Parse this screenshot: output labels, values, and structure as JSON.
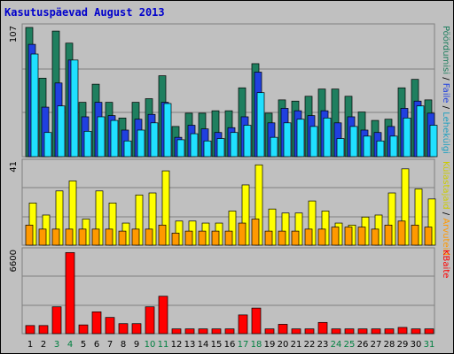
{
  "title": "Kasutuspäevad August 2013",
  "colors": {
    "visits": "#1f7f5f",
    "pages": "#2040e0",
    "files": "#20e0ff",
    "hits": "#ffff00",
    "hosts": "#ff9900",
    "kbytes": "#ff0000",
    "weekend_label": "#008040",
    "weekday_label": "#000000",
    "axis_label": "#000000"
  },
  "chart_data": [
    {
      "type": "bar",
      "panel": "top",
      "ymax_label": "107",
      "ylim": [
        0,
        107
      ],
      "right_labels": [
        {
          "text": "Pöördumisi",
          "color": "#1f7f5f"
        },
        {
          "text": " / ",
          "color": "#000000"
        },
        {
          "text": "Faile",
          "color": "#2040e0"
        },
        {
          "text": " / ",
          "color": "#000000"
        },
        {
          "text": "Lehekülgi",
          "color": "#20a0c0"
        }
      ],
      "categories": [
        "1",
        "2",
        "3",
        "4",
        "5",
        "6",
        "7",
        "8",
        "9",
        "10",
        "11",
        "12",
        "13",
        "14",
        "15",
        "16",
        "17",
        "18",
        "19",
        "20",
        "21",
        "22",
        "23",
        "24",
        "25",
        "26",
        "27",
        "28",
        "29",
        "30",
        "31"
      ],
      "series": [
        {
          "name": "Pöördumisi",
          "values": [
            107,
            65,
            104,
            94,
            45,
            60,
            45,
            32,
            45,
            48,
            67,
            25,
            36,
            36,
            38,
            38,
            57,
            77,
            36,
            47,
            46,
            50,
            56,
            56,
            50,
            37,
            30,
            31,
            57,
            64,
            47
          ]
        },
        {
          "name": "Faile",
          "values": [
            93,
            41,
            61,
            80,
            33,
            45,
            34,
            22,
            31,
            35,
            45,
            16,
            26,
            23,
            20,
            24,
            33,
            70,
            28,
            40,
            38,
            34,
            38,
            28,
            33,
            22,
            20,
            25,
            40,
            46,
            36
          ]
        },
        {
          "name": "Lehekülgi",
          "values": [
            85,
            20,
            42,
            80,
            21,
            33,
            30,
            13,
            22,
            28,
            44,
            14,
            19,
            13,
            15,
            20,
            26,
            53,
            16,
            28,
            31,
            25,
            32,
            15,
            25,
            17,
            13,
            17,
            32,
            42,
            26
          ]
        }
      ]
    },
    {
      "type": "bar",
      "panel": "middle",
      "ymax_label": "41",
      "ylim": [
        0,
        41
      ],
      "right_labels": [
        {
          "text": "Külastajaid",
          "color": "#cccc00"
        },
        {
          "text": " / ",
          "color": "#000000"
        },
        {
          "text": "Arvuteid",
          "color": "#ff9900"
        }
      ],
      "categories": [
        "1",
        "2",
        "3",
        "4",
        "5",
        "6",
        "7",
        "8",
        "9",
        "10",
        "11",
        "12",
        "13",
        "14",
        "15",
        "16",
        "17",
        "18",
        "19",
        "20",
        "21",
        "22",
        "23",
        "24",
        "25",
        "26",
        "27",
        "28",
        "29",
        "30",
        "31"
      ],
      "series": [
        {
          "name": "Külastajaid",
          "values": [
            21,
            15,
            27,
            32,
            13,
            27,
            21,
            11,
            25,
            26,
            37,
            12,
            12,
            11,
            11,
            17,
            30,
            40,
            18,
            16,
            16,
            22,
            17,
            11,
            10,
            14,
            15,
            26,
            38,
            28,
            23
          ]
        },
        {
          "name": "Arvuteid",
          "values": [
            10,
            8,
            8,
            8,
            8,
            8,
            8,
            7,
            8,
            8,
            10,
            6,
            7,
            7,
            7,
            7,
            11,
            13,
            7,
            7,
            7,
            8,
            8,
            9,
            9,
            9,
            8,
            10,
            12,
            10,
            9
          ]
        }
      ]
    },
    {
      "type": "bar",
      "panel": "bottom",
      "ymax_label": "6600",
      "ylim": [
        0,
        6600
      ],
      "right_labels": [
        {
          "text": "KBaite",
          "color": "#ff0000"
        }
      ],
      "categories": [
        "1",
        "2",
        "3",
        "4",
        "5",
        "6",
        "7",
        "8",
        "9",
        "10",
        "11",
        "12",
        "13",
        "14",
        "15",
        "16",
        "17",
        "18",
        "19",
        "20",
        "21",
        "22",
        "23",
        "24",
        "25",
        "26",
        "27",
        "28",
        "29",
        "30",
        "31"
      ],
      "weekend_days": [
        "3",
        "4",
        "10",
        "11",
        "17",
        "18",
        "24",
        "25",
        "31"
      ],
      "series": [
        {
          "name": "KBaite",
          "values": [
            650,
            650,
            2150,
            6500,
            700,
            1750,
            1300,
            800,
            800,
            2150,
            3000,
            380,
            380,
            380,
            380,
            380,
            1500,
            2050,
            380,
            750,
            380,
            380,
            900,
            380,
            380,
            380,
            380,
            380,
            500,
            380,
            380
          ]
        }
      ]
    }
  ]
}
